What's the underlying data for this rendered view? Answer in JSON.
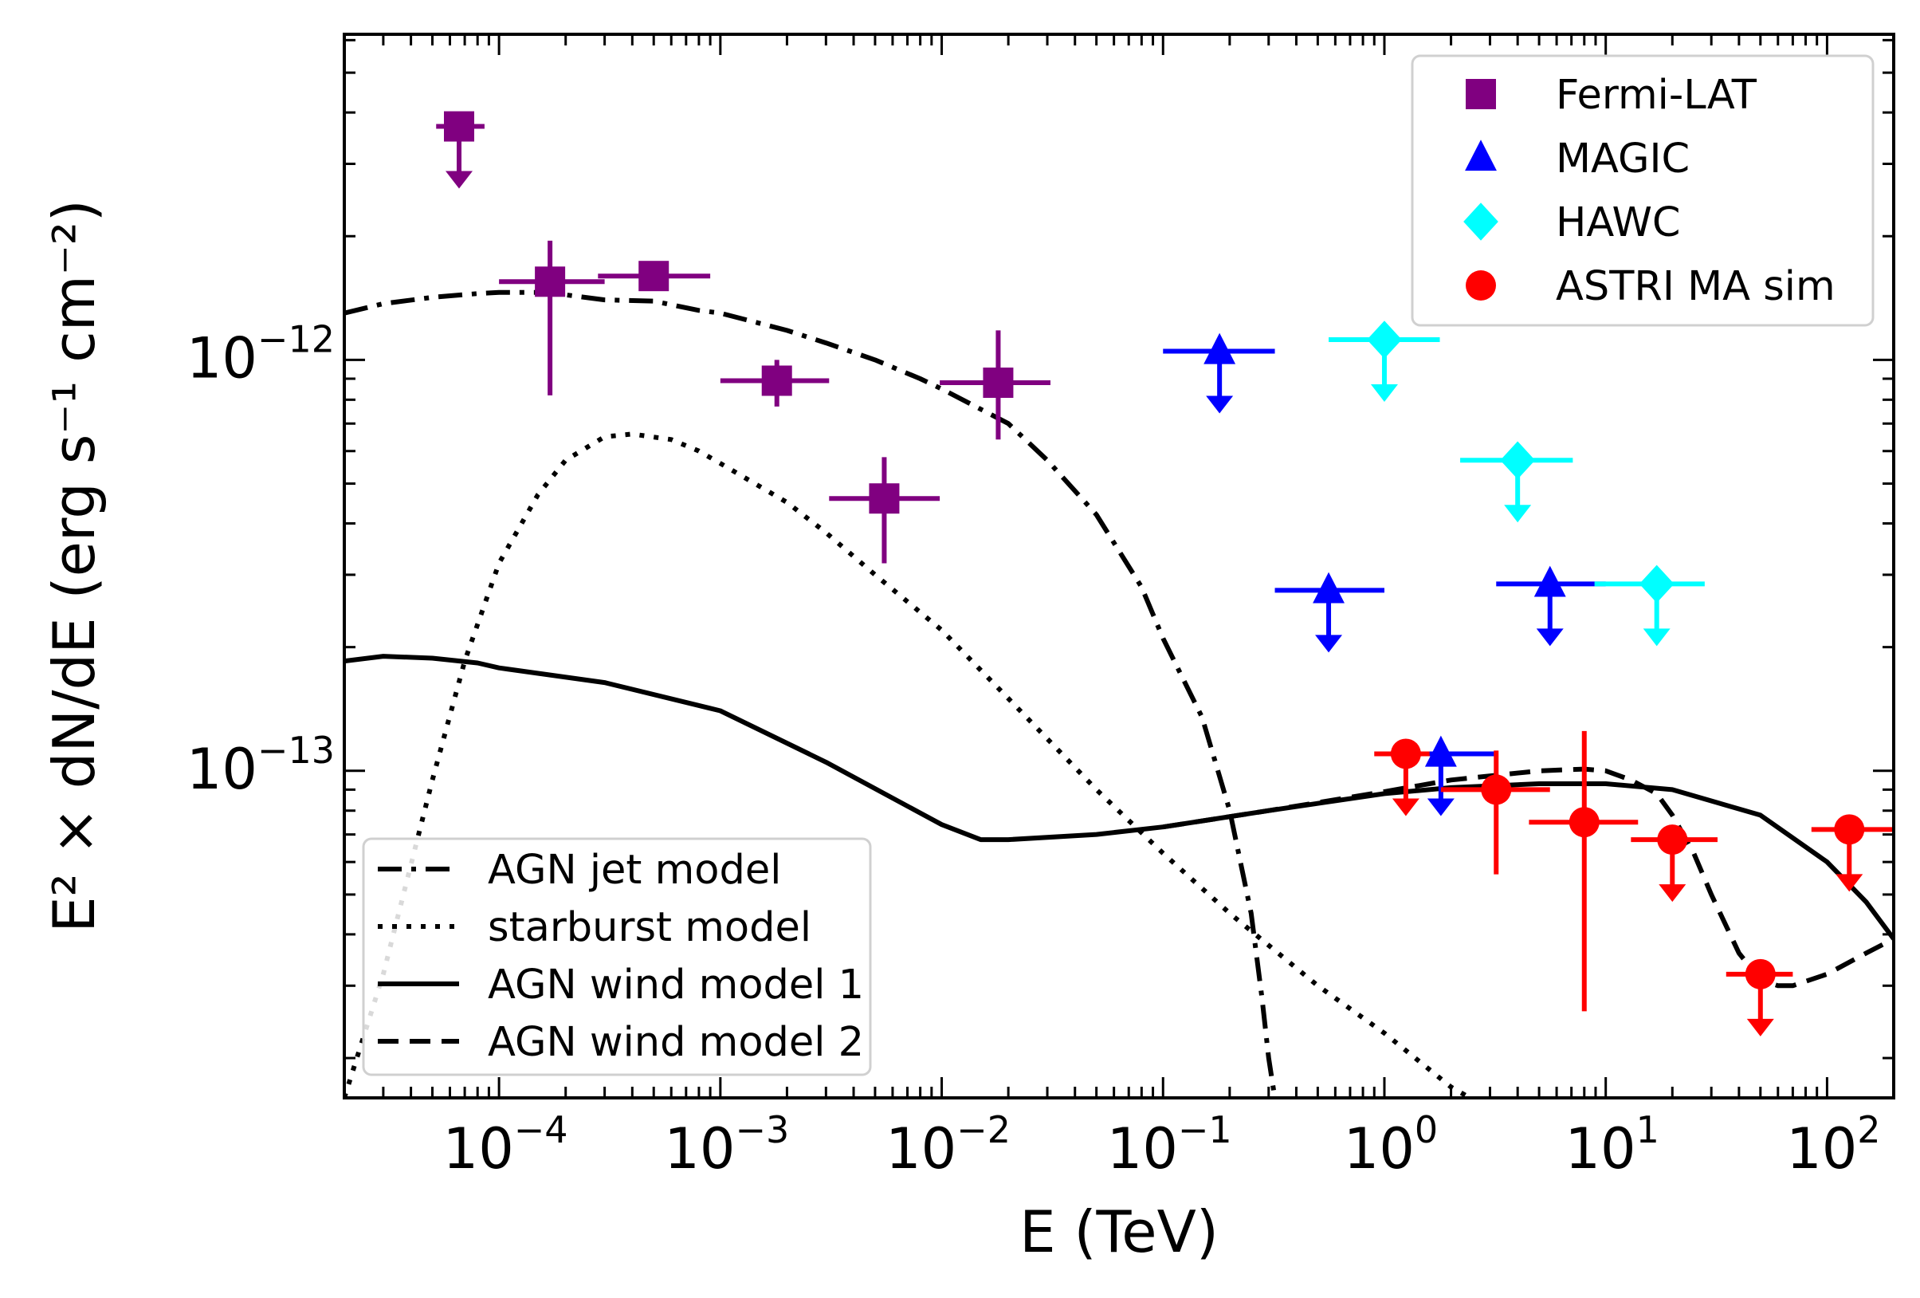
{
  "chart_data": {
    "type": "scatter",
    "xlabel": "E (TeV)",
    "ylabel": "E² × dN/dE (erg s⁻¹ cm⁻²)",
    "xscale": "log",
    "yscale": "log",
    "xlim": [
      2e-05,
      200
    ],
    "ylim": [
      1.6e-14,
      6.2e-12
    ],
    "grid": false,
    "x_tick_labels": [
      {
        "value": 0.0001,
        "base": "10",
        "exp": "−4"
      },
      {
        "value": 0.001,
        "base": "10",
        "exp": "−3"
      },
      {
        "value": 0.01,
        "base": "10",
        "exp": "−2"
      },
      {
        "value": 0.1,
        "base": "10",
        "exp": "−1"
      },
      {
        "value": 1,
        "base": "10",
        "exp": "0"
      },
      {
        "value": 10,
        "base": "10",
        "exp": "1"
      },
      {
        "value": 100,
        "base": "10",
        "exp": "2"
      }
    ],
    "y_tick_labels": [
      {
        "value": 1e-12,
        "base": "10",
        "exp": "−12"
      },
      {
        "value": 1e-13,
        "base": "10",
        "exp": "−13"
      }
    ],
    "data_legend": {
      "location": "upper right"
    },
    "model_legend": {
      "location": "lower left"
    },
    "series": [
      {
        "name": "Fermi-LAT",
        "marker": "square",
        "color": "#800080",
        "points": [
          {
            "x": 6.6e-05,
            "y": 3.7e-12,
            "xlo": 5.2e-05,
            "xhi": 8.6e-05,
            "upper_limit": true
          },
          {
            "x": 0.00017,
            "y": 1.55e-12,
            "xlo": 0.0001,
            "xhi": 0.0003,
            "ylo": 8.2e-13,
            "yhi": 1.95e-12
          },
          {
            "x": 0.0005,
            "y": 1.6e-12,
            "xlo": 0.00028,
            "xhi": 0.0009,
            "ylo": 1.48e-12,
            "yhi": 1.7e-12
          },
          {
            "x": 0.0018,
            "y": 8.9e-13,
            "xlo": 0.001,
            "xhi": 0.0031,
            "ylo": 7.7e-13,
            "yhi": 1e-12
          },
          {
            "x": 0.0055,
            "y": 4.6e-13,
            "xlo": 0.0031,
            "xhi": 0.0098,
            "ylo": 3.2e-13,
            "yhi": 5.8e-13
          },
          {
            "x": 0.018,
            "y": 8.8e-13,
            "xlo": 0.0098,
            "xhi": 0.031,
            "ylo": 6.4e-13,
            "yhi": 1.18e-12
          }
        ]
      },
      {
        "name": "MAGIC",
        "marker": "triangle",
        "color": "#0000ff",
        "points": [
          {
            "x": 0.18,
            "y": 1.05e-12,
            "xlo": 0.1,
            "xhi": 0.32,
            "upper_limit": true
          },
          {
            "x": 0.56,
            "y": 2.75e-13,
            "xlo": 0.32,
            "xhi": 1.0,
            "upper_limit": true
          },
          {
            "x": 1.8,
            "y": 1.1e-13,
            "xlo": 1.0,
            "xhi": 3.2,
            "upper_limit": true
          },
          {
            "x": 5.6,
            "y": 2.85e-13,
            "xlo": 3.2,
            "xhi": 10.0,
            "upper_limit": true
          }
        ]
      },
      {
        "name": "HAWC",
        "marker": "diamond",
        "color": "#00ffff",
        "points": [
          {
            "x": 1.0,
            "y": 1.12e-12,
            "xlo": 0.56,
            "xhi": 1.78,
            "upper_limit": true
          },
          {
            "x": 4.0,
            "y": 5.7e-13,
            "xlo": 2.2,
            "xhi": 7.1,
            "upper_limit": true
          },
          {
            "x": 17.0,
            "y": 2.85e-13,
            "xlo": 8.9,
            "xhi": 28.0,
            "upper_limit": true
          }
        ]
      },
      {
        "name": "ASTRI MA sim",
        "marker": "circle",
        "color": "#ff0000",
        "points": [
          {
            "x": 1.25,
            "y": 1.1e-13,
            "xlo": 0.9,
            "xhi": 1.6,
            "upper_limit": true
          },
          {
            "x": 3.2,
            "y": 9e-14,
            "xlo": 1.8,
            "xhi": 5.6,
            "ylo": 5.6e-14,
            "yhi": 1.12e-13
          },
          {
            "x": 8.0,
            "y": 7.5e-14,
            "xlo": 4.5,
            "xhi": 14.0,
            "ylo": 2.6e-14,
            "yhi": 1.25e-13
          },
          {
            "x": 20.0,
            "y": 6.8e-14,
            "xlo": 13.0,
            "xhi": 32.0,
            "upper_limit": true
          },
          {
            "x": 50.0,
            "y": 3.2e-14,
            "xlo": 35.0,
            "xhi": 70.0,
            "upper_limit": true
          },
          {
            "x": 126.0,
            "y": 7.2e-14,
            "xlo": 85.0,
            "xhi": 200.0,
            "upper_limit": true
          }
        ]
      }
    ],
    "models": [
      {
        "name": "AGN jet model",
        "style": "dashdot",
        "x": [
          2e-05,
          3e-05,
          5e-05,
          8e-05,
          0.0001,
          0.00015,
          0.0002,
          0.0003,
          0.0005,
          0.0008,
          0.001,
          0.002,
          0.003,
          0.005,
          0.008,
          0.01,
          0.02,
          0.03,
          0.05,
          0.08,
          0.1,
          0.15,
          0.2,
          0.25,
          0.28,
          0.3,
          0.32
        ],
        "y": [
          1.3e-12,
          1.37e-12,
          1.42e-12,
          1.45e-12,
          1.46e-12,
          1.46e-12,
          1.44e-12,
          1.4e-12,
          1.39e-12,
          1.32e-12,
          1.3e-12,
          1.18e-12,
          1.1e-12,
          1e-12,
          9e-13,
          8.5e-13,
          7e-13,
          5.7e-13,
          4.2e-13,
          2.8e-13,
          2.1e-13,
          1.35e-13,
          8e-14,
          4.5e-14,
          2.8e-14,
          2e-14,
          1.6e-14
        ]
      },
      {
        "name": "starburst model",
        "style": "dotted",
        "x": [
          2e-05,
          3e-05,
          5e-05,
          7e-05,
          0.0001,
          0.00015,
          0.0002,
          0.0003,
          0.0004,
          0.0006,
          0.0008,
          0.001,
          0.002,
          0.003,
          0.005,
          0.01,
          0.02,
          0.05,
          0.1,
          0.2,
          0.5,
          1,
          2,
          3
        ],
        "y": [
          1.6e-14,
          3.2e-14,
          9.5e-14,
          1.85e-13,
          3.2e-13,
          4.7e-13,
          5.7e-13,
          6.5e-13,
          6.6e-13,
          6.4e-13,
          6e-13,
          5.6e-13,
          4.5e-13,
          3.8e-13,
          3e-13,
          2.2e-13,
          1.5e-13,
          9e-14,
          6.3e-14,
          4.5e-14,
          3e-14,
          2.3e-14,
          1.7e-14,
          1.5e-14
        ]
      },
      {
        "name": "AGN wind model 1",
        "style": "solid",
        "x": [
          2e-05,
          3e-05,
          5e-05,
          8e-05,
          0.0001,
          0.0003,
          0.001,
          0.003,
          0.01,
          0.015,
          0.02,
          0.05,
          0.1,
          0.3,
          1,
          2,
          5,
          10,
          20,
          50,
          100,
          150,
          200
        ],
        "y": [
          1.85e-13,
          1.9e-13,
          1.88e-13,
          1.83e-13,
          1.78e-13,
          1.64e-13,
          1.4e-13,
          1.05e-13,
          7.4e-14,
          6.8e-14,
          6.8e-14,
          7e-14,
          7.3e-14,
          8e-14,
          8.8e-14,
          9.1e-14,
          9.3e-14,
          9.3e-14,
          9e-14,
          7.8e-14,
          6e-14,
          4.8e-14,
          3.9e-14
        ]
      },
      {
        "name": "AGN wind model 2",
        "style": "dashed",
        "x": [
          0.1,
          0.3,
          1,
          2,
          5,
          8,
          10,
          13,
          17,
          20,
          25,
          30,
          40,
          50,
          60,
          70,
          100,
          150,
          200
        ],
        "y": [
          7.3e-14,
          8e-14,
          8.9e-14,
          9.5e-14,
          1e-13,
          1.01e-13,
          1e-13,
          9.5e-14,
          8.8e-14,
          7.8e-14,
          6.3e-14,
          5e-14,
          3.6e-14,
          3.1e-14,
          3e-14,
          3e-14,
          3.2e-14,
          3.6e-14,
          3.9e-14
        ]
      }
    ]
  }
}
